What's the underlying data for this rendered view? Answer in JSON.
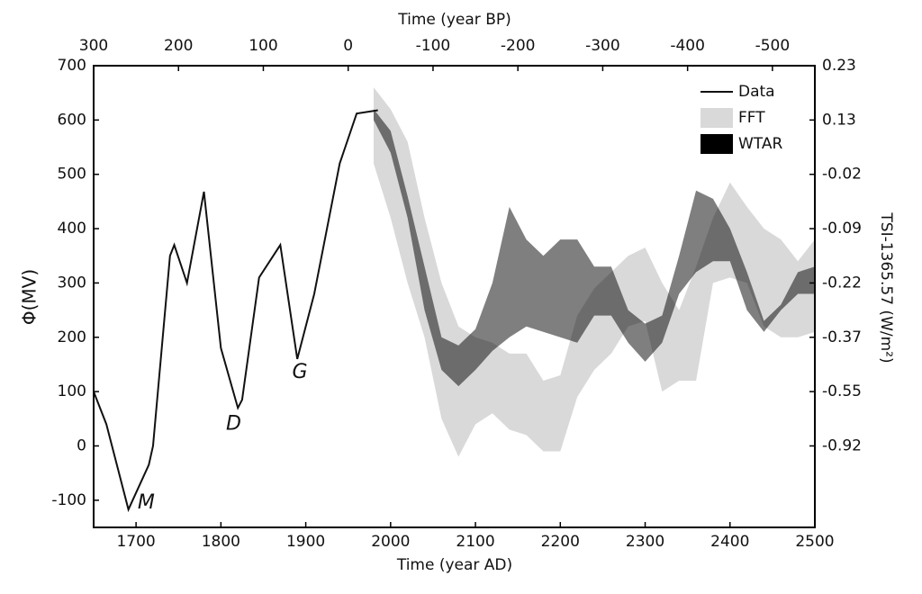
{
  "chart_data": {
    "type": "line",
    "x_label": "Time (year AD)",
    "x2_label": "Time (year BP)",
    "y_label": "Φ(MV)",
    "y2_label": "TSI-1365.57 (W/m²)",
    "xlim": [
      1650,
      2500
    ],
    "xticks": [
      1700,
      1800,
      1900,
      2000,
      2100,
      2200,
      2300,
      2400,
      2500
    ],
    "x2lim": [
      300,
      -550
    ],
    "x2ticks": [
      300,
      200,
      100,
      0,
      -100,
      -200,
      -300,
      -400,
      -500
    ],
    "ylim": [
      -150,
      700
    ],
    "yticks": [
      -100,
      0,
      100,
      200,
      300,
      400,
      500,
      600,
      700
    ],
    "y2ticks": [
      -0.92,
      -0.55,
      -0.37,
      -0.22,
      -0.09,
      -0.02,
      0.13,
      0.23
    ],
    "legend": "upper right",
    "series": [
      {
        "name": "Data",
        "type": "line",
        "color": "#111111",
        "x": [
          1650,
          1665,
          1691,
          1715,
          1720,
          1740,
          1745,
          1760,
          1780,
          1800,
          1820,
          1825,
          1845,
          1870,
          1890,
          1910,
          1940,
          1960,
          1985
        ],
        "values": [
          100,
          40,
          -117,
          -35,
          0,
          350,
          370,
          300,
          468,
          180,
          70,
          85,
          310,
          370,
          160,
          280,
          520,
          612,
          618
        ]
      },
      {
        "name": "FFT",
        "type": "band",
        "color": "#d9d9d9",
        "opacity": 1,
        "x": [
          1980,
          2000,
          2020,
          2040,
          2060,
          2080,
          2100,
          2120,
          2140,
          2160,
          2180,
          2200,
          2220,
          2240,
          2260,
          2280,
          2300,
          2320,
          2340,
          2360,
          2380,
          2400,
          2420,
          2440,
          2460,
          2480,
          2500
        ],
        "upper": [
          660,
          620,
          560,
          420,
          300,
          220,
          200,
          190,
          170,
          170,
          120,
          130,
          240,
          290,
          320,
          350,
          365,
          300,
          250,
          330,
          420,
          485,
          440,
          400,
          380,
          340,
          380
        ],
        "lower": [
          520,
          420,
          300,
          200,
          50,
          -20,
          40,
          60,
          30,
          20,
          -10,
          -10,
          90,
          140,
          170,
          220,
          230,
          100,
          120,
          120,
          300,
          310,
          300,
          220,
          200,
          200,
          210
        ]
      },
      {
        "name": "WTAR",
        "type": "band",
        "color": "#000000",
        "opacity": 0.5,
        "x": [
          1980,
          2000,
          2020,
          2040,
          2060,
          2080,
          2100,
          2120,
          2140,
          2160,
          2180,
          2200,
          2220,
          2240,
          2260,
          2280,
          2300,
          2320,
          2340,
          2360,
          2380,
          2400,
          2420,
          2440,
          2460,
          2480,
          2500
        ],
        "upper": [
          620,
          580,
          460,
          330,
          200,
          185,
          215,
          300,
          440,
          380,
          350,
          380,
          380,
          330,
          330,
          250,
          225,
          240,
          350,
          470,
          455,
          400,
          320,
          230,
          260,
          320,
          330
        ],
        "lower": [
          600,
          540,
          420,
          250,
          140,
          110,
          140,
          175,
          200,
          220,
          210,
          200,
          190,
          240,
          240,
          190,
          155,
          190,
          280,
          320,
          340,
          340,
          250,
          210,
          250,
          280,
          280
        ]
      }
    ],
    "annotations": [
      {
        "text": "M",
        "x": 1712,
        "y": -105
      },
      {
        "text": "D",
        "x": 1815,
        "y": 40
      },
      {
        "text": "G",
        "x": 1893,
        "y": 135
      }
    ]
  }
}
